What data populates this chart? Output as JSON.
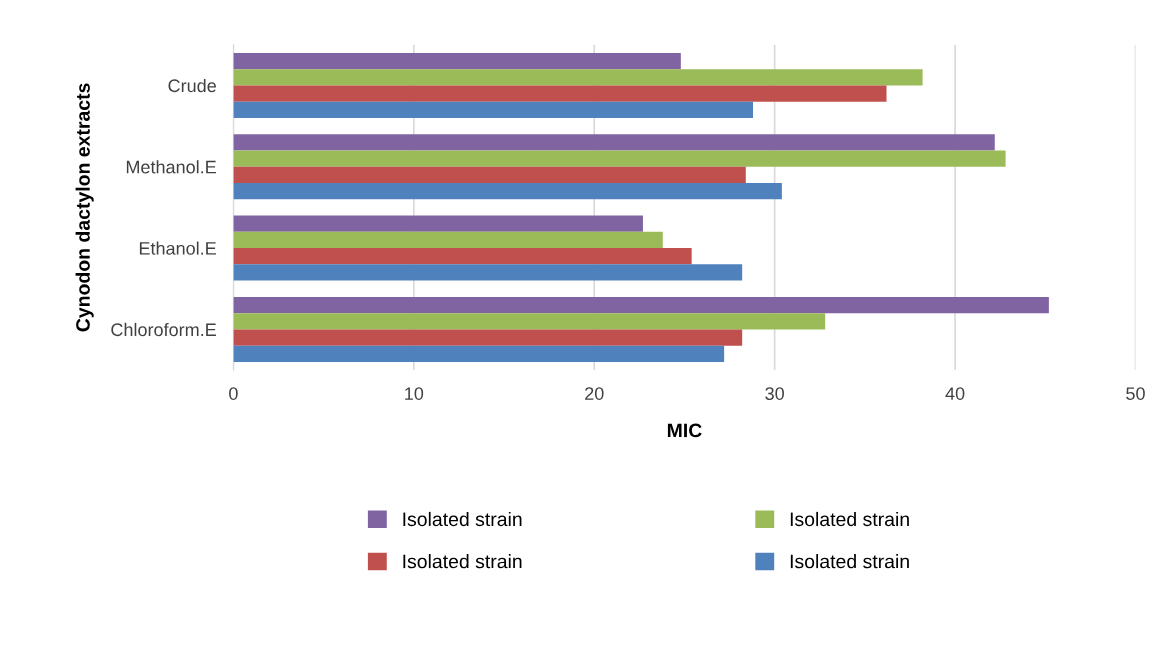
{
  "chart_data": {
    "type": "bar",
    "orientation": "horizontal",
    "xlabel": "MIC",
    "ylabel": "Cynodon dactylon extracts",
    "categories": [
      "Crude",
      "Methanol.E",
      "Ethanol.E",
      "Chloroform.E"
    ],
    "series": [
      {
        "name": "Isolated strain",
        "color": "#8064a2",
        "values": [
          24.8,
          42.2,
          22.7,
          45.2
        ]
      },
      {
        "name": "Isolated strain",
        "color": "#9bbb59",
        "values": [
          38.2,
          42.8,
          23.8,
          32.8
        ]
      },
      {
        "name": "Isolated strain",
        "color": "#c0504d",
        "values": [
          36.2,
          28.4,
          25.4,
          28.2
        ]
      },
      {
        "name": "Isolated strain",
        "color": "#4f81bd",
        "values": [
          28.8,
          30.4,
          28.2,
          27.2
        ]
      }
    ],
    "xlim": [
      0,
      50
    ],
    "xticks": [
      0,
      10,
      20,
      30,
      40,
      50
    ],
    "grid": "x",
    "legend": "bottom"
  }
}
